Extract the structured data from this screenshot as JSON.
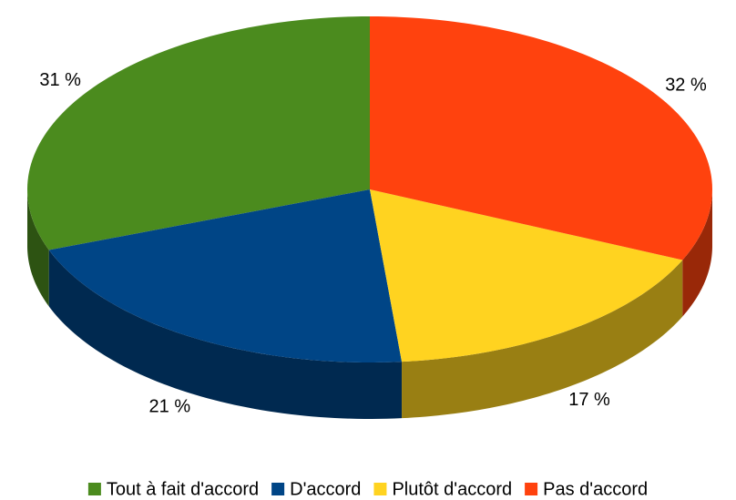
{
  "chart_data": {
    "type": "pie3d",
    "series": [
      {
        "name": "Tout à fait d'accord",
        "color": "#4b8b1e",
        "values": [
          31
        ],
        "value_labels": [
          "31 %"
        ]
      },
      {
        "name": "D'accord",
        "color": "#004586",
        "values": [
          21
        ],
        "value_labels": [
          "21 %"
        ]
      },
      {
        "name": "Plutôt d'accord",
        "color": "#ffd320",
        "values": [
          17
        ],
        "value_labels": [
          "17 %"
        ]
      },
      {
        "name": "Pas d'accord",
        "color": "#ff420e",
        "values": [
          32
        ],
        "value_labels": [
          "32 %"
        ]
      }
    ],
    "legend": "bottom"
  }
}
